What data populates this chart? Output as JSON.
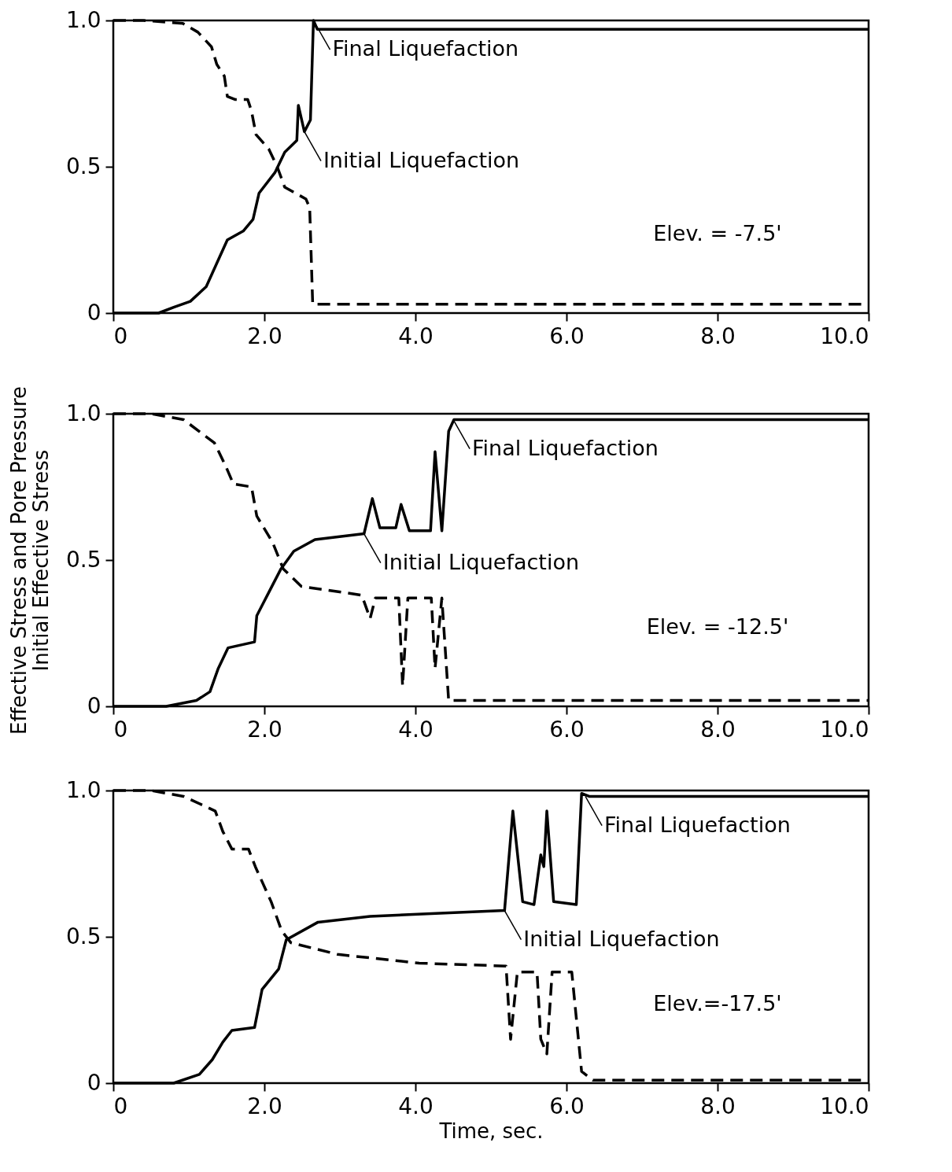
{
  "chart_data": [
    {
      "type": "line",
      "xlim": [
        0,
        10
      ],
      "ylim": [
        0,
        1
      ],
      "xticks": [
        0,
        {
          "value": 2,
          "label": "2.0"
        },
        {
          "value": 4,
          "label": "4.0"
        },
        {
          "value": 6,
          "label": "6.0"
        },
        {
          "value": 8,
          "label": "8.0"
        },
        {
          "value": 10,
          "label": "10.0"
        }
      ],
      "yticks": [
        0,
        0.5,
        {
          "value": 1,
          "label": "1.0"
        }
      ],
      "series": [
        {
          "color": "#000000",
          "line_style": "solid",
          "x": [
            0,
            0.6,
            0.8,
            1.02,
            1.23,
            1.37,
            1.51,
            1.72,
            1.85,
            1.93,
            2.14,
            2.27,
            2.43,
            2.45,
            2.53,
            2.61,
            2.65,
            2.7,
            10
          ],
          "values": [
            0,
            0,
            0.02,
            0.04,
            0.09,
            0.17,
            0.25,
            0.28,
            0.32,
            0.41,
            0.48,
            0.55,
            0.59,
            0.71,
            0.62,
            0.66,
            1.0,
            0.97,
            0.97
          ]
        },
        {
          "color": "#000000",
          "line_style": "dashed",
          "x": [
            0,
            0.4,
            0.92,
            1.12,
            1.3,
            1.37,
            1.47,
            1.51,
            1.61,
            1.78,
            1.83,
            1.89,
            2.06,
            2.17,
            2.27,
            2.55,
            2.6,
            2.64,
            10
          ],
          "values": [
            1.0,
            1.0,
            0.99,
            0.96,
            0.91,
            0.85,
            0.81,
            0.74,
            0.73,
            0.73,
            0.69,
            0.61,
            0.56,
            0.5,
            0.43,
            0.39,
            0.36,
            0.03,
            0.03
          ]
        }
      ],
      "annotations": [
        "Elev. = -7.5'",
        {
          "text": "Final Liquefaction",
          "x": 2.65,
          "y": 1.0
        },
        {
          "text": "Initial Liquefaction",
          "x": 2.53,
          "y": 0.62
        }
      ]
    },
    {
      "type": "line",
      "xlim": [
        0,
        10
      ],
      "ylim": [
        0,
        1
      ],
      "ylabel": "Effective Stress and Pore Pressure\nInitial Effective Stress",
      "xticks": [
        0,
        {
          "value": 2,
          "label": "2.0"
        },
        {
          "value": 4,
          "label": "4.0"
        },
        {
          "value": 6,
          "label": "6.0"
        },
        {
          "value": 8,
          "label": "8.0"
        },
        {
          "value": 10,
          "label": "10.0"
        }
      ],
      "yticks": [
        0,
        0.5,
        {
          "value": 1,
          "label": "1.0"
        }
      ],
      "series": [
        {
          "color": "#000000",
          "line_style": "solid",
          "x": [
            0,
            0.7,
            1.1,
            1.28,
            1.39,
            1.52,
            1.87,
            1.9,
            2.04,
            2.22,
            2.39,
            2.67,
            3.32,
            3.43,
            3.53,
            3.74,
            3.81,
            3.92,
            4.2,
            4.26,
            4.35,
            4.44,
            4.51,
            10
          ],
          "values": [
            0,
            0,
            0.02,
            0.05,
            0.13,
            0.2,
            0.22,
            0.31,
            0.38,
            0.47,
            0.53,
            0.57,
            0.59,
            0.71,
            0.61,
            0.61,
            0.69,
            0.6,
            0.6,
            0.87,
            0.6,
            0.94,
            0.98,
            0.98
          ]
        },
        {
          "color": "#000000",
          "line_style": "dashed",
          "x": [
            0,
            0.5,
            0.93,
            1.34,
            1.49,
            1.59,
            1.83,
            1.9,
            2.11,
            2.25,
            2.49,
            3.29,
            3.4,
            3.47,
            3.78,
            3.83,
            3.9,
            4.21,
            4.26,
            4.35,
            4.44,
            10
          ],
          "values": [
            1.0,
            1.0,
            0.98,
            0.9,
            0.82,
            0.76,
            0.75,
            0.65,
            0.56,
            0.47,
            0.41,
            0.38,
            0.3,
            0.37,
            0.37,
            0.07,
            0.37,
            0.37,
            0.13,
            0.37,
            0.02,
            0.02
          ]
        }
      ],
      "annotations": [
        "Elev. = -12.5'",
        {
          "text": "Final Liquefaction",
          "x": 4.5,
          "y": 0.98
        },
        {
          "text": "Initial Liquefaction",
          "x": 3.32,
          "y": 0.59
        }
      ]
    },
    {
      "type": "line",
      "xlim": [
        0,
        10
      ],
      "ylim": [
        0,
        1
      ],
      "xlabel": "Time, sec.",
      "xticks": [
        0,
        {
          "value": 2,
          "label": "2.0"
        },
        {
          "value": 4,
          "label": "4.0"
        },
        {
          "value": 6,
          "label": "6.0"
        },
        {
          "value": 8,
          "label": "8.0"
        },
        {
          "value": 10,
          "label": "10.0"
        }
      ],
      "yticks": [
        0,
        0.5,
        {
          "value": 1,
          "label": "1.0"
        }
      ],
      "series": [
        {
          "color": "#000000",
          "line_style": "solid",
          "x": [
            0,
            0.8,
            1.14,
            1.31,
            1.45,
            1.57,
            1.87,
            1.97,
            2.19,
            2.29,
            2.71,
            3.4,
            4.27,
            5.18,
            5.29,
            5.42,
            5.57,
            5.66,
            5.7,
            5.74,
            5.83,
            6.13,
            6.2,
            6.3,
            10
          ],
          "values": [
            0,
            0,
            0.03,
            0.08,
            0.14,
            0.18,
            0.19,
            0.32,
            0.39,
            0.49,
            0.55,
            0.57,
            0.58,
            0.59,
            0.93,
            0.62,
            0.61,
            0.78,
            0.74,
            0.93,
            0.62,
            0.61,
            0.99,
            0.98,
            0.98
          ]
        },
        {
          "color": "#000000",
          "line_style": "dashed",
          "x": [
            0,
            0.5,
            0.93,
            1.35,
            1.45,
            1.57,
            1.79,
            1.88,
            2.09,
            2.23,
            2.35,
            2.97,
            4.05,
            5.2,
            5.26,
            5.35,
            5.61,
            5.66,
            5.74,
            5.81,
            6.07,
            6.2,
            6.35,
            10
          ],
          "values": [
            1.0,
            1.0,
            0.98,
            0.93,
            0.86,
            0.8,
            0.8,
            0.74,
            0.62,
            0.52,
            0.48,
            0.44,
            0.41,
            0.4,
            0.15,
            0.38,
            0.38,
            0.15,
            0.1,
            0.38,
            0.38,
            0.04,
            0.01,
            0.01
          ]
        }
      ],
      "annotations": [
        "Elev.=-17.5'",
        {
          "text": "Final Liquefaction",
          "x": 6.25,
          "y": 0.98
        },
        {
          "text": "Initial Liquefaction",
          "x": 5.18,
          "y": 0.59
        }
      ]
    }
  ]
}
